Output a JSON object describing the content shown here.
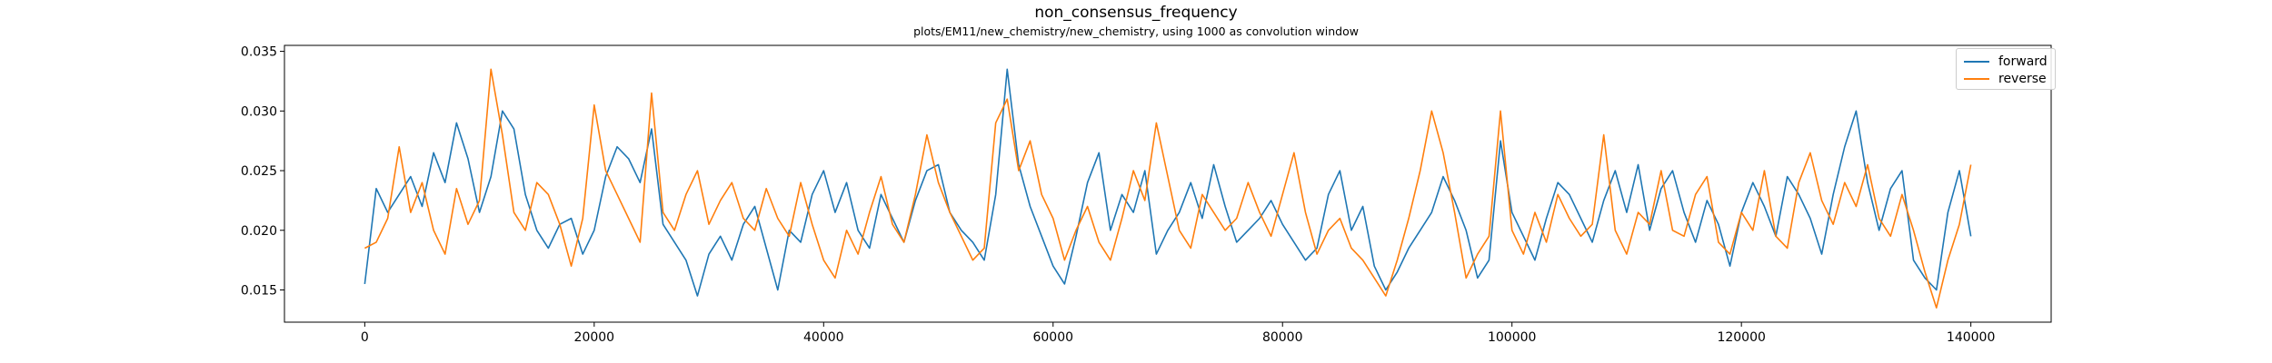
{
  "chart_data": {
    "type": "line",
    "title": "non_consensus_frequency",
    "subtitle": "plots/EM11/new_chemistry/new_chemistry, using 1000 as convolution window",
    "xlabel": "",
    "ylabel": "",
    "xlim": [
      -7000,
      147000
    ],
    "ylim": [
      0.0123,
      0.0355
    ],
    "xticks": [
      0,
      20000,
      40000,
      60000,
      80000,
      100000,
      120000,
      140000
    ],
    "xtick_labels": [
      "0",
      "20000",
      "40000",
      "60000",
      "80000",
      "100000",
      "120000",
      "140000"
    ],
    "yticks": [
      0.015,
      0.02,
      0.025,
      0.03,
      0.035
    ],
    "ytick_labels": [
      "0.015",
      "0.020",
      "0.025",
      "0.030",
      "0.035"
    ],
    "grid": false,
    "legend_position": "upper right",
    "series": [
      {
        "name": "forward",
        "color": "#1f77b4",
        "x": [
          0,
          1000,
          2000,
          3000,
          4000,
          5000,
          6000,
          7000,
          8000,
          9000,
          10000,
          11000,
          12000,
          13000,
          14000,
          15000,
          16000,
          17000,
          18000,
          19000,
          20000,
          21000,
          22000,
          23000,
          24000,
          25000,
          26000,
          27000,
          28000,
          29000,
          30000,
          31000,
          32000,
          33000,
          34000,
          35000,
          36000,
          37000,
          38000,
          39000,
          40000,
          41000,
          42000,
          43000,
          44000,
          45000,
          46000,
          47000,
          48000,
          49000,
          50000,
          51000,
          52000,
          53000,
          54000,
          55000,
          56000,
          57000,
          58000,
          59000,
          60000,
          61000,
          62000,
          63000,
          64000,
          65000,
          66000,
          67000,
          68000,
          69000,
          70000,
          71000,
          72000,
          73000,
          74000,
          75000,
          76000,
          77000,
          78000,
          79000,
          80000,
          81000,
          82000,
          83000,
          84000,
          85000,
          86000,
          87000,
          88000,
          89000,
          90000,
          91000,
          92000,
          93000,
          94000,
          95000,
          96000,
          97000,
          98000,
          99000,
          100000,
          101000,
          102000,
          103000,
          104000,
          105000,
          106000,
          107000,
          108000,
          109000,
          110000,
          111000,
          112000,
          113000,
          114000,
          115000,
          116000,
          117000,
          118000,
          119000,
          120000,
          121000,
          122000,
          123000,
          124000,
          125000,
          126000,
          127000,
          128000,
          129000,
          130000,
          131000,
          132000,
          133000,
          134000,
          135000,
          136000,
          137000,
          138000,
          139000,
          140000
        ],
        "y": [
          0.0155,
          0.0235,
          0.0215,
          0.023,
          0.0245,
          0.022,
          0.0265,
          0.024,
          0.029,
          0.026,
          0.0215,
          0.0245,
          0.03,
          0.0285,
          0.023,
          0.02,
          0.0185,
          0.0205,
          0.021,
          0.018,
          0.02,
          0.0245,
          0.027,
          0.026,
          0.024,
          0.0285,
          0.0205,
          0.019,
          0.0175,
          0.0145,
          0.018,
          0.0195,
          0.0175,
          0.0205,
          0.022,
          0.0185,
          0.015,
          0.02,
          0.019,
          0.023,
          0.025,
          0.0215,
          0.024,
          0.02,
          0.0185,
          0.023,
          0.021,
          0.019,
          0.0225,
          0.025,
          0.0255,
          0.0215,
          0.02,
          0.019,
          0.0175,
          0.023,
          0.0335,
          0.0255,
          0.022,
          0.0195,
          0.017,
          0.0155,
          0.0195,
          0.024,
          0.0265,
          0.02,
          0.023,
          0.0215,
          0.025,
          0.018,
          0.02,
          0.0215,
          0.024,
          0.021,
          0.0255,
          0.022,
          0.019,
          0.02,
          0.021,
          0.0225,
          0.0205,
          0.019,
          0.0175,
          0.0185,
          0.023,
          0.025,
          0.02,
          0.022,
          0.017,
          0.015,
          0.0165,
          0.0185,
          0.02,
          0.0215,
          0.0245,
          0.0225,
          0.02,
          0.016,
          0.0175,
          0.0275,
          0.0215,
          0.0195,
          0.0175,
          0.021,
          0.024,
          0.023,
          0.021,
          0.019,
          0.0225,
          0.025,
          0.0215,
          0.0255,
          0.02,
          0.0235,
          0.025,
          0.0215,
          0.019,
          0.0225,
          0.0205,
          0.017,
          0.0215,
          0.024,
          0.022,
          0.0195,
          0.0245,
          0.023,
          0.021,
          0.018,
          0.023,
          0.027,
          0.03,
          0.024,
          0.02,
          0.0235,
          0.025,
          0.0175,
          0.016,
          0.015,
          0.0215,
          0.025,
          0.0195
        ]
      },
      {
        "name": "reverse",
        "color": "#ff7f0e",
        "x": [
          0,
          1000,
          2000,
          3000,
          4000,
          5000,
          6000,
          7000,
          8000,
          9000,
          10000,
          11000,
          12000,
          13000,
          14000,
          15000,
          16000,
          17000,
          18000,
          19000,
          20000,
          21000,
          22000,
          23000,
          24000,
          25000,
          26000,
          27000,
          28000,
          29000,
          30000,
          31000,
          32000,
          33000,
          34000,
          35000,
          36000,
          37000,
          38000,
          39000,
          40000,
          41000,
          42000,
          43000,
          44000,
          45000,
          46000,
          47000,
          48000,
          49000,
          50000,
          51000,
          52000,
          53000,
          54000,
          55000,
          56000,
          57000,
          58000,
          59000,
          60000,
          61000,
          62000,
          63000,
          64000,
          65000,
          66000,
          67000,
          68000,
          69000,
          70000,
          71000,
          72000,
          73000,
          74000,
          75000,
          76000,
          77000,
          78000,
          79000,
          80000,
          81000,
          82000,
          83000,
          84000,
          85000,
          86000,
          87000,
          88000,
          89000,
          90000,
          91000,
          92000,
          93000,
          94000,
          95000,
          96000,
          97000,
          98000,
          99000,
          100000,
          101000,
          102000,
          103000,
          104000,
          105000,
          106000,
          107000,
          108000,
          109000,
          110000,
          111000,
          112000,
          113000,
          114000,
          115000,
          116000,
          117000,
          118000,
          119000,
          120000,
          121000,
          122000,
          123000,
          124000,
          125000,
          126000,
          127000,
          128000,
          129000,
          130000,
          131000,
          132000,
          133000,
          134000,
          135000,
          136000,
          137000,
          138000,
          139000,
          140000
        ],
        "y": [
          0.0185,
          0.019,
          0.021,
          0.027,
          0.0215,
          0.024,
          0.02,
          0.018,
          0.0235,
          0.0205,
          0.0225,
          0.0335,
          0.028,
          0.0215,
          0.02,
          0.024,
          0.023,
          0.0205,
          0.017,
          0.021,
          0.0305,
          0.025,
          0.023,
          0.021,
          0.019,
          0.0315,
          0.0215,
          0.02,
          0.023,
          0.025,
          0.0205,
          0.0225,
          0.024,
          0.021,
          0.02,
          0.0235,
          0.021,
          0.0195,
          0.024,
          0.0205,
          0.0175,
          0.016,
          0.02,
          0.018,
          0.0215,
          0.0245,
          0.0205,
          0.019,
          0.023,
          0.028,
          0.024,
          0.0215,
          0.0195,
          0.0175,
          0.0185,
          0.029,
          0.031,
          0.025,
          0.0275,
          0.023,
          0.021,
          0.0175,
          0.02,
          0.022,
          0.019,
          0.0175,
          0.021,
          0.025,
          0.0225,
          0.029,
          0.0245,
          0.02,
          0.0185,
          0.023,
          0.0215,
          0.02,
          0.021,
          0.024,
          0.0215,
          0.0195,
          0.023,
          0.0265,
          0.0215,
          0.018,
          0.02,
          0.021,
          0.0185,
          0.0175,
          0.016,
          0.0145,
          0.0175,
          0.021,
          0.025,
          0.03,
          0.0265,
          0.0215,
          0.016,
          0.018,
          0.0195,
          0.03,
          0.02,
          0.018,
          0.0215,
          0.019,
          0.023,
          0.021,
          0.0195,
          0.0205,
          0.028,
          0.02,
          0.018,
          0.0215,
          0.0205,
          0.025,
          0.02,
          0.0195,
          0.023,
          0.0245,
          0.019,
          0.018,
          0.0215,
          0.02,
          0.025,
          0.0195,
          0.0185,
          0.024,
          0.0265,
          0.0225,
          0.0205,
          0.024,
          0.022,
          0.0255,
          0.021,
          0.0195,
          0.023,
          0.02,
          0.0165,
          0.0135,
          0.0175,
          0.0205,
          0.0255
        ]
      }
    ]
  }
}
